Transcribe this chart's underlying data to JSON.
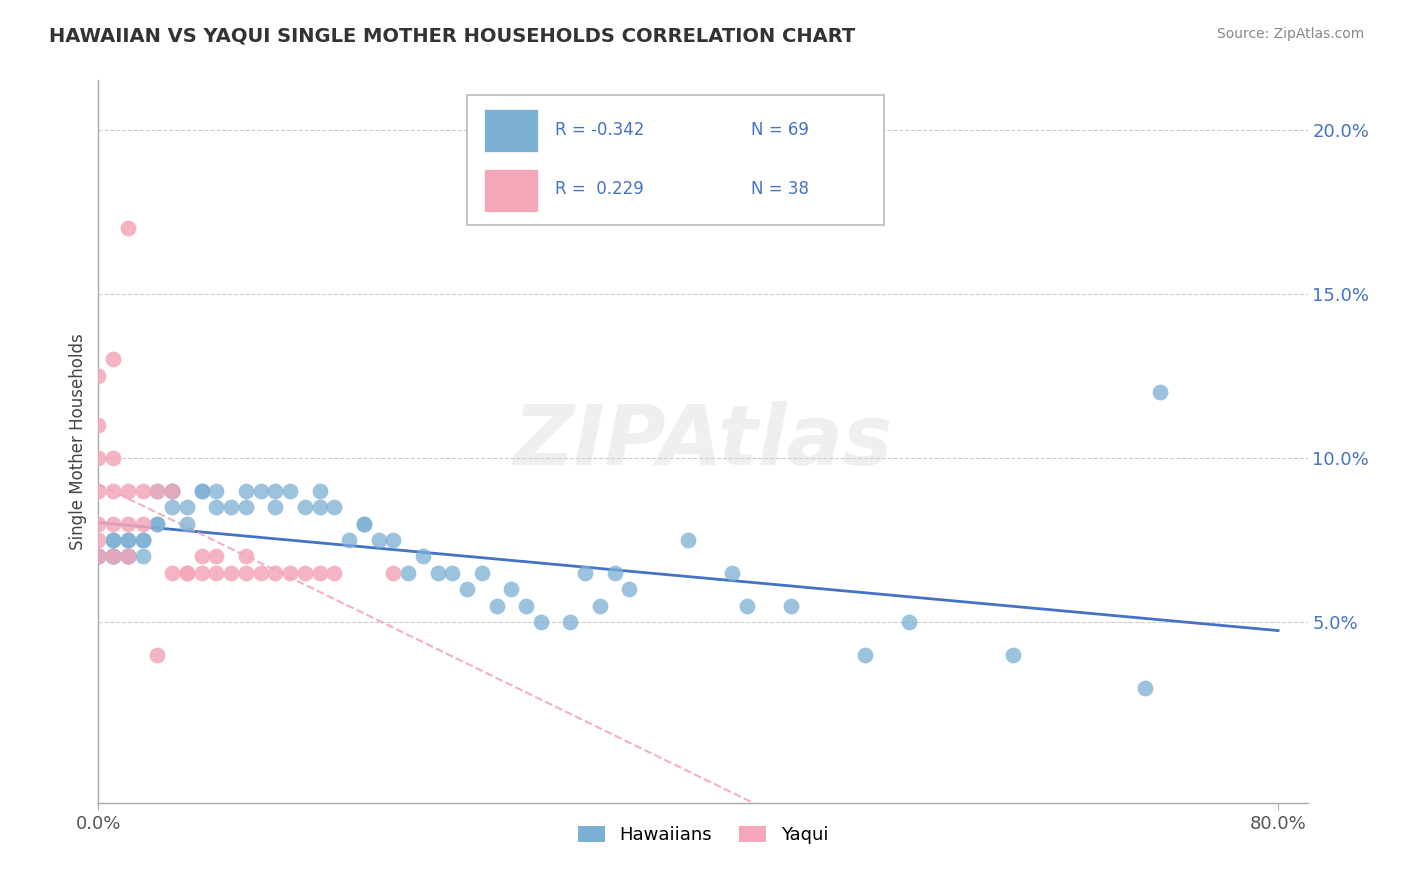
{
  "title": "HAWAIIAN VS YAQUI SINGLE MOTHER HOUSEHOLDS CORRELATION CHART",
  "source": "Source: ZipAtlas.com",
  "ylabel": "Single Mother Households",
  "xlim": [
    0.0,
    0.82
  ],
  "ylim": [
    -0.005,
    0.215
  ],
  "hawaiian_color": "#7bafd4",
  "yaqui_color": "#f4a7b9",
  "hawaiian_line_color": "#4472c4",
  "yaqui_line_color": "#f4a7b9",
  "background_color": "#ffffff",
  "r_hawaiian": -0.342,
  "n_hawaiian": 69,
  "r_yaqui": 0.229,
  "n_yaqui": 38,
  "hawaiians_label": "Hawaiians",
  "yaqui_label": "Yaqui",
  "hawaiian_x": [
    0.0,
    0.0,
    0.0,
    0.01,
    0.01,
    0.01,
    0.01,
    0.01,
    0.01,
    0.02,
    0.02,
    0.02,
    0.02,
    0.02,
    0.03,
    0.03,
    0.03,
    0.04,
    0.04,
    0.04,
    0.05,
    0.05,
    0.05,
    0.06,
    0.06,
    0.07,
    0.07,
    0.08,
    0.08,
    0.09,
    0.1,
    0.1,
    0.11,
    0.12,
    0.12,
    0.13,
    0.14,
    0.15,
    0.15,
    0.16,
    0.17,
    0.18,
    0.18,
    0.19,
    0.2,
    0.21,
    0.22,
    0.23,
    0.24,
    0.25,
    0.26,
    0.27,
    0.28,
    0.29,
    0.3,
    0.32,
    0.33,
    0.34,
    0.35,
    0.36,
    0.4,
    0.43,
    0.44,
    0.47,
    0.52,
    0.55,
    0.62,
    0.71,
    0.72
  ],
  "hawaiian_y": [
    0.07,
    0.07,
    0.07,
    0.07,
    0.07,
    0.07,
    0.075,
    0.075,
    0.07,
    0.07,
    0.07,
    0.07,
    0.075,
    0.075,
    0.07,
    0.075,
    0.075,
    0.08,
    0.08,
    0.09,
    0.09,
    0.09,
    0.085,
    0.08,
    0.085,
    0.09,
    0.09,
    0.085,
    0.09,
    0.085,
    0.085,
    0.09,
    0.09,
    0.09,
    0.085,
    0.09,
    0.085,
    0.09,
    0.085,
    0.085,
    0.075,
    0.08,
    0.08,
    0.075,
    0.075,
    0.065,
    0.07,
    0.065,
    0.065,
    0.06,
    0.065,
    0.055,
    0.06,
    0.055,
    0.05,
    0.05,
    0.065,
    0.055,
    0.065,
    0.06,
    0.075,
    0.065,
    0.055,
    0.055,
    0.04,
    0.05,
    0.04,
    0.03,
    0.12
  ],
  "yaqui_x": [
    0.0,
    0.0,
    0.0,
    0.0,
    0.0,
    0.0,
    0.0,
    0.01,
    0.01,
    0.01,
    0.01,
    0.01,
    0.02,
    0.02,
    0.02,
    0.02,
    0.03,
    0.03,
    0.04,
    0.04,
    0.05,
    0.05,
    0.06,
    0.06,
    0.07,
    0.07,
    0.08,
    0.08,
    0.09,
    0.1,
    0.1,
    0.11,
    0.12,
    0.13,
    0.14,
    0.15,
    0.16,
    0.2
  ],
  "yaqui_y": [
    0.07,
    0.075,
    0.08,
    0.09,
    0.1,
    0.11,
    0.125,
    0.07,
    0.08,
    0.09,
    0.1,
    0.13,
    0.07,
    0.08,
    0.09,
    0.17,
    0.08,
    0.09,
    0.09,
    0.04,
    0.09,
    0.065,
    0.065,
    0.065,
    0.065,
    0.07,
    0.065,
    0.07,
    0.065,
    0.065,
    0.07,
    0.065,
    0.065,
    0.065,
    0.065,
    0.065,
    0.065,
    0.065
  ]
}
